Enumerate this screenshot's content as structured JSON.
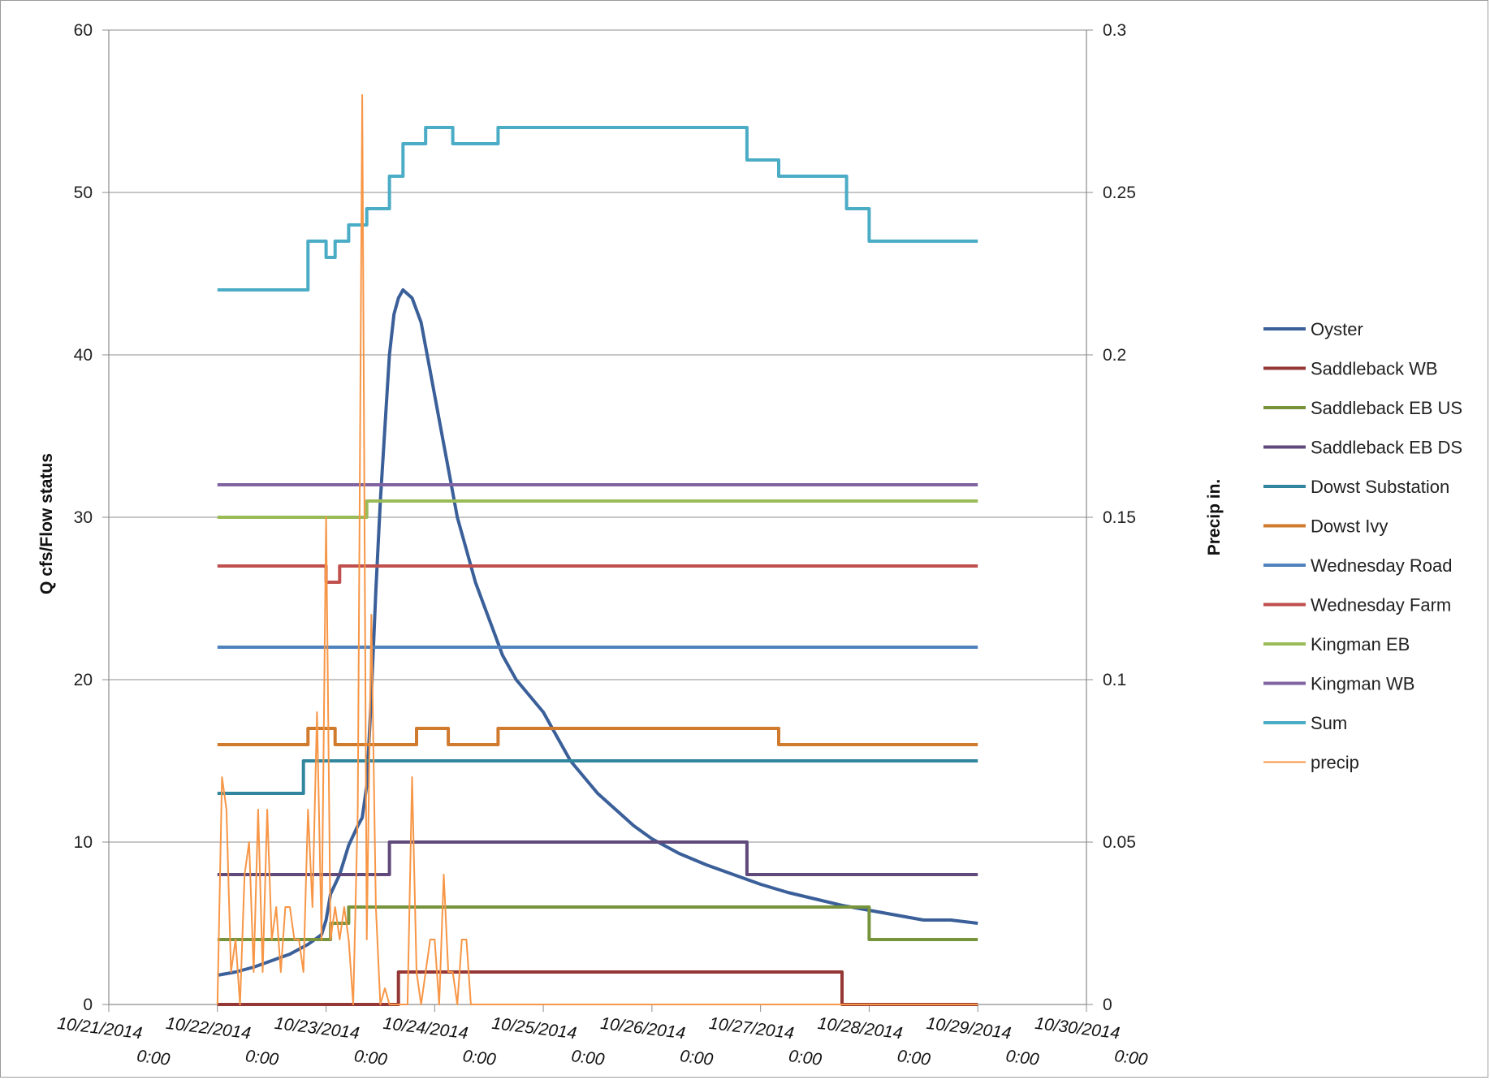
{
  "chart_data": {
    "type": "line",
    "title": "",
    "xlabel": "",
    "ylabel": "Q cfs/Flow status",
    "y2label": "Precip in.",
    "xlim": [
      "10/21/2014 0:00",
      "10/30/2014 0:00"
    ],
    "ylim": [
      0,
      60
    ],
    "y2lim": [
      0,
      0.3
    ],
    "grid": "horizontal",
    "legend_position": "right",
    "x_ticks": [
      {
        "line1": "10/21/2014",
        "line2": "0:00"
      },
      {
        "line1": "10/22/2014",
        "line2": "0:00"
      },
      {
        "line1": "10/23/2014",
        "line2": "0:00"
      },
      {
        "line1": "10/24/2014",
        "line2": "0:00"
      },
      {
        "line1": "10/25/2014",
        "line2": "0:00"
      },
      {
        "line1": "10/26/2014",
        "line2": "0:00"
      },
      {
        "line1": "10/27/2014",
        "line2": "0:00"
      },
      {
        "line1": "10/28/2014",
        "line2": "0:00"
      },
      {
        "line1": "10/29/2014",
        "line2": "0:00"
      },
      {
        "line1": "10/30/2014",
        "line2": "0:00"
      }
    ],
    "y_ticks": [
      "0",
      "10",
      "20",
      "30",
      "40",
      "50",
      "60"
    ],
    "y2_ticks": [
      "0",
      "0.05",
      "0.1",
      "0.15",
      "0.2",
      "0.25",
      "0.3"
    ],
    "series": [
      {
        "name": "Oyster",
        "color": "#3a5f99",
        "axis": "left",
        "width": 4,
        "step": false,
        "points": [
          [
            "10/22/2014 0:00",
            1.8
          ],
          [
            "10/22/2014 4:00",
            2.0
          ],
          [
            "10/22/2014 8:00",
            2.3
          ],
          [
            "10/22/2014 12:00",
            2.7
          ],
          [
            "10/22/2014 16:00",
            3.1
          ],
          [
            "10/22/2014 20:00",
            3.7
          ],
          [
            "10/22/2014 23:00",
            4.3
          ],
          [
            "10/23/2014 0:00",
            5.2
          ],
          [
            "10/23/2014 1:00",
            6.8
          ],
          [
            "10/23/2014 3:00",
            8.0
          ],
          [
            "10/23/2014 5:00",
            9.8
          ],
          [
            "10/23/2014 7:00",
            11.0
          ],
          [
            "10/23/2014 8:00",
            11.5
          ],
          [
            "10/23/2014 9:00",
            13.5
          ],
          [
            "10/23/2014 10:00",
            19.0
          ],
          [
            "10/23/2014 11:00",
            25.5
          ],
          [
            "10/23/2014 12:00",
            31.0
          ],
          [
            "10/23/2014 13:00",
            35.5
          ],
          [
            "10/23/2014 14:00",
            40.0
          ],
          [
            "10/23/2014 15:00",
            42.5
          ],
          [
            "10/23/2014 16:00",
            43.5
          ],
          [
            "10/23/2014 17:00",
            44.0
          ],
          [
            "10/23/2014 19:00",
            43.5
          ],
          [
            "10/23/2014 21:00",
            42.0
          ],
          [
            "10/23/2014 23:00",
            39.0
          ],
          [
            "10/24/2014 1:00",
            36.0
          ],
          [
            "10/24/2014 3:00",
            33.0
          ],
          [
            "10/24/2014 5:00",
            30.0
          ],
          [
            "10/24/2014 7:00",
            28.0
          ],
          [
            "10/24/2014 9:00",
            26.0
          ],
          [
            "10/24/2014 11:00",
            24.5
          ],
          [
            "10/24/2014 13:00",
            23.0
          ],
          [
            "10/24/2014 15:00",
            21.5
          ],
          [
            "10/24/2014 18:00",
            20.0
          ],
          [
            "10/24/2014 21:00",
            19.0
          ],
          [
            "10/25/2014 0:00",
            18.0
          ],
          [
            "10/25/2014 3:00",
            16.5
          ],
          [
            "10/25/2014 6:00",
            15.0
          ],
          [
            "10/25/2014 9:00",
            14.0
          ],
          [
            "10/25/2014 12:00",
            13.0
          ],
          [
            "10/25/2014 16:00",
            12.0
          ],
          [
            "10/25/2014 20:00",
            11.0
          ],
          [
            "10/26/2014 0:00",
            10.2
          ],
          [
            "10/26/2014 6:00",
            9.3
          ],
          [
            "10/26/2014 12:00",
            8.6
          ],
          [
            "10/26/2014 18:00",
            8.0
          ],
          [
            "10/27/2014 0:00",
            7.4
          ],
          [
            "10/27/2014 6:00",
            6.9
          ],
          [
            "10/27/2014 12:00",
            6.5
          ],
          [
            "10/27/2014 18:00",
            6.1
          ],
          [
            "10/28/2014 0:00",
            5.8
          ],
          [
            "10/28/2014 6:00",
            5.5
          ],
          [
            "10/28/2014 12:00",
            5.2
          ],
          [
            "10/28/2014 18:00",
            5.2
          ],
          [
            "10/29/2014 0:00",
            5.0
          ]
        ]
      },
      {
        "name": "Saddleback WB",
        "color": "#953735",
        "axis": "left",
        "width": 4,
        "step": true,
        "points": [
          [
            "10/22/2014 0:00",
            0
          ],
          [
            "10/23/2014 16:00",
            2
          ],
          [
            "10/27/2014 18:00",
            0
          ],
          [
            "10/29/2014 0:00",
            0
          ]
        ]
      },
      {
        "name": "Saddleback EB US",
        "color": "#77933c",
        "axis": "left",
        "width": 4,
        "step": true,
        "points": [
          [
            "10/22/2014 0:00",
            4
          ],
          [
            "10/23/2014 1:00",
            5
          ],
          [
            "10/23/2014 5:00",
            6
          ],
          [
            "10/28/2014 0:00",
            4
          ],
          [
            "10/29/2014 0:00",
            4
          ]
        ]
      },
      {
        "name": "Saddleback EB DS",
        "color": "#604a7b",
        "axis": "left",
        "width": 4,
        "step": true,
        "points": [
          [
            "10/22/2014 0:00",
            8
          ],
          [
            "10/23/2014 14:00",
            10
          ],
          [
            "10/26/2014 21:00",
            8
          ],
          [
            "10/29/2014 0:00",
            8
          ]
        ]
      },
      {
        "name": "Dowst Substation",
        "color": "#31859c",
        "axis": "left",
        "width": 4,
        "step": true,
        "points": [
          [
            "10/22/2014 0:00",
            13
          ],
          [
            "10/22/2014 19:00",
            15
          ],
          [
            "10/29/2014 0:00",
            15
          ]
        ]
      },
      {
        "name": "Dowst Ivy",
        "color": "#d07a2e",
        "axis": "left",
        "width": 4,
        "step": true,
        "points": [
          [
            "10/22/2014 0:00",
            16
          ],
          [
            "10/22/2014 20:00",
            17
          ],
          [
            "10/23/2014 2:00",
            16
          ],
          [
            "10/23/2014 20:00",
            17
          ],
          [
            "10/24/2014 3:00",
            16
          ],
          [
            "10/24/2014 14:00",
            17
          ],
          [
            "10/27/2014 4:00",
            16
          ],
          [
            "10/29/2014 0:00",
            16
          ]
        ]
      },
      {
        "name": "Wednesday Road",
        "color": "#4f81bd",
        "axis": "left",
        "width": 4,
        "step": true,
        "points": [
          [
            "10/22/2014 0:00",
            22
          ],
          [
            "10/29/2014 0:00",
            22
          ]
        ]
      },
      {
        "name": "Wednesday Farm",
        "color": "#c0504d",
        "axis": "left",
        "width": 4,
        "step": true,
        "points": [
          [
            "10/22/2014 0:00",
            27
          ],
          [
            "10/23/2014 0:00",
            26
          ],
          [
            "10/23/2014 3:00",
            27
          ],
          [
            "10/29/2014 0:00",
            27
          ]
        ]
      },
      {
        "name": "Kingman EB",
        "color": "#9bbb59",
        "axis": "left",
        "width": 4,
        "step": true,
        "points": [
          [
            "10/22/2014 0:00",
            30
          ],
          [
            "10/23/2014 9:00",
            31
          ],
          [
            "10/29/2014 0:00",
            31
          ]
        ]
      },
      {
        "name": "Kingman WB",
        "color": "#8064a2",
        "axis": "left",
        "width": 4,
        "step": true,
        "points": [
          [
            "10/22/2014 0:00",
            32
          ],
          [
            "10/29/2014 0:00",
            32
          ]
        ]
      },
      {
        "name": "Sum",
        "color": "#4bacc6",
        "axis": "left",
        "width": 4,
        "step": true,
        "points": [
          [
            "10/22/2014 0:00",
            44
          ],
          [
            "10/22/2014 20:00",
            47
          ],
          [
            "10/23/2014 0:00",
            46
          ],
          [
            "10/23/2014 2:00",
            47
          ],
          [
            "10/23/2014 5:00",
            48
          ],
          [
            "10/23/2014 9:00",
            49
          ],
          [
            "10/23/2014 14:00",
            51
          ],
          [
            "10/23/2014 17:00",
            53
          ],
          [
            "10/23/2014 22:00",
            54
          ],
          [
            "10/24/2014 4:00",
            53
          ],
          [
            "10/24/2014 14:00",
            54
          ],
          [
            "10/26/2014 21:00",
            52
          ],
          [
            "10/27/2014 4:00",
            51
          ],
          [
            "10/27/2014 19:00",
            49
          ],
          [
            "10/28/2014 0:00",
            47
          ],
          [
            "10/29/2014 0:00",
            47
          ]
        ]
      },
      {
        "name": "precip",
        "color": "#f79646",
        "axis": "right",
        "width": 2,
        "step": false,
        "points": [
          [
            "10/22/2014 0:00",
            0
          ],
          [
            "10/22/2014 1:00",
            0.07
          ],
          [
            "10/22/2014 2:00",
            0.06
          ],
          [
            "10/22/2014 3:00",
            0.01
          ],
          [
            "10/22/2014 4:00",
            0.02
          ],
          [
            "10/22/2014 5:00",
            0
          ],
          [
            "10/22/2014 6:00",
            0.04
          ],
          [
            "10/22/2014 7:00",
            0.05
          ],
          [
            "10/22/2014 8:00",
            0.01
          ],
          [
            "10/22/2014 9:00",
            0.06
          ],
          [
            "10/22/2014 10:00",
            0.01
          ],
          [
            "10/22/2014 11:00",
            0.06
          ],
          [
            "10/22/2014 12:00",
            0.02
          ],
          [
            "10/22/2014 13:00",
            0.03
          ],
          [
            "10/22/2014 14:00",
            0.01
          ],
          [
            "10/22/2014 15:00",
            0.03
          ],
          [
            "10/22/2014 16:00",
            0.03
          ],
          [
            "10/22/2014 17:00",
            0.02
          ],
          [
            "10/22/2014 18:00",
            0.02
          ],
          [
            "10/22/2014 19:00",
            0.01
          ],
          [
            "10/22/2014 20:00",
            0.06
          ],
          [
            "10/22/2014 21:00",
            0.03
          ],
          [
            "10/22/2014 22:00",
            0.09
          ],
          [
            "10/22/2014 23:00",
            0.02
          ],
          [
            "10/23/2014 0:00",
            0.15
          ],
          [
            "10/23/2014 1:00",
            0.02
          ],
          [
            "10/23/2014 2:00",
            0.03
          ],
          [
            "10/23/2014 3:00",
            0.02
          ],
          [
            "10/23/2014 4:00",
            0.03
          ],
          [
            "10/23/2014 5:00",
            0.02
          ],
          [
            "10/23/2014 6:00",
            0
          ],
          [
            "10/23/2014 7:00",
            0.06
          ],
          [
            "10/23/2014 8:00",
            0.28
          ],
          [
            "10/23/2014 9:00",
            0.02
          ],
          [
            "10/23/2014 10:00",
            0.12
          ],
          [
            "10/23/2014 11:00",
            0.03
          ],
          [
            "10/23/2014 12:00",
            0
          ],
          [
            "10/23/2014 13:00",
            0.005
          ],
          [
            "10/23/2014 14:00",
            0
          ],
          [
            "10/23/2014 15:00",
            0
          ],
          [
            "10/23/2014 16:00",
            0
          ],
          [
            "10/23/2014 17:00",
            0
          ],
          [
            "10/23/2014 18:00",
            0
          ],
          [
            "10/23/2014 19:00",
            0.07
          ],
          [
            "10/23/2014 20:00",
            0.01
          ],
          [
            "10/23/2014 21:00",
            0
          ],
          [
            "10/23/2014 22:00",
            0.01
          ],
          [
            "10/23/2014 23:00",
            0.02
          ],
          [
            "10/24/2014 0:00",
            0.02
          ],
          [
            "10/24/2014 1:00",
            0
          ],
          [
            "10/24/2014 2:00",
            0.04
          ],
          [
            "10/24/2014 3:00",
            0.01
          ],
          [
            "10/24/2014 4:00",
            0.01
          ],
          [
            "10/24/2014 5:00",
            0
          ],
          [
            "10/24/2014 6:00",
            0.02
          ],
          [
            "10/24/2014 7:00",
            0.02
          ],
          [
            "10/24/2014 8:00",
            0
          ],
          [
            "10/24/2014 9:00",
            0
          ],
          [
            "10/29/2014 0:00",
            0
          ]
        ]
      }
    ]
  }
}
